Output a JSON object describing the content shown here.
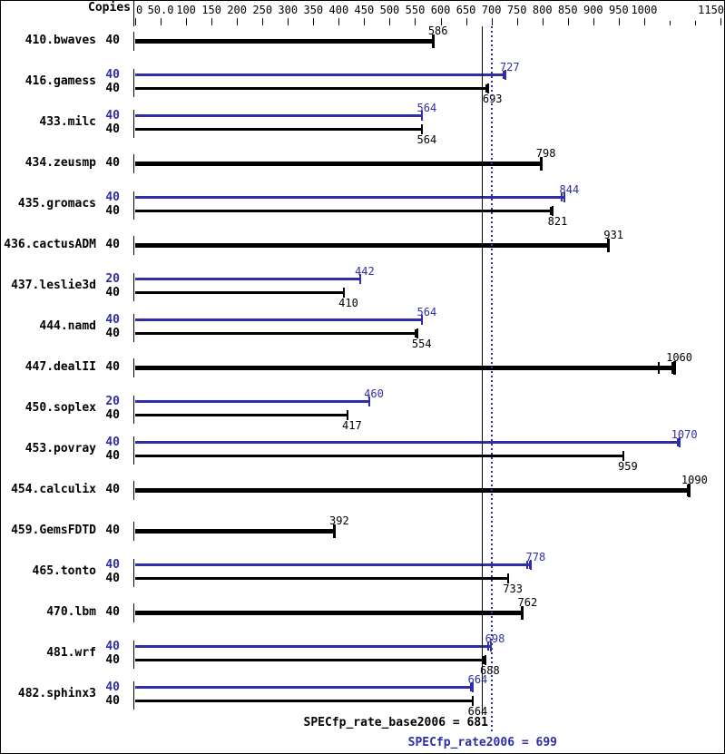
{
  "chart_data": {
    "type": "bar",
    "orientation": "horizontal",
    "copies_label": "Copies",
    "axis": {
      "min": 0,
      "max": 1150,
      "labeled_ticks": [
        {
          "value": 0,
          "label": "0"
        },
        {
          "value": 50,
          "label": "50.0"
        },
        {
          "value": 100,
          "label": "100"
        },
        {
          "value": 150,
          "label": "150"
        },
        {
          "value": 200,
          "label": "200"
        },
        {
          "value": 250,
          "label": "250"
        },
        {
          "value": 300,
          "label": "300"
        },
        {
          "value": 350,
          "label": "350"
        },
        {
          "value": 400,
          "label": "400"
        },
        {
          "value": 450,
          "label": "450"
        },
        {
          "value": 500,
          "label": "500"
        },
        {
          "value": 550,
          "label": "550"
        },
        {
          "value": 600,
          "label": "600"
        },
        {
          "value": 650,
          "label": "650"
        },
        {
          "value": 700,
          "label": "700"
        },
        {
          "value": 750,
          "label": "750"
        },
        {
          "value": 800,
          "label": "800"
        },
        {
          "value": 850,
          "label": "850"
        },
        {
          "value": 900,
          "label": "900"
        },
        {
          "value": 950,
          "label": "950"
        },
        {
          "value": 1000,
          "label": "1000"
        },
        {
          "value": 1150,
          "label": "1150"
        }
      ],
      "minor_ticks": [
        1050,
        1100
      ]
    },
    "series_colors": {
      "base": "#000000",
      "peak": "#2e2ea8"
    },
    "benchmarks": [
      {
        "name": "410.bwaves",
        "bars": [
          {
            "series": "base",
            "copies": "40",
            "value": 586
          }
        ]
      },
      {
        "name": "416.gamess",
        "bars": [
          {
            "series": "peak",
            "copies": "40",
            "value": 727,
            "run_ticks": [
              723
            ]
          },
          {
            "series": "base",
            "copies": "40",
            "value": 693,
            "run_ticks": [
              690
            ]
          }
        ]
      },
      {
        "name": "433.milc",
        "bars": [
          {
            "series": "peak",
            "copies": "40",
            "value": 564
          },
          {
            "series": "base",
            "copies": "40",
            "value": 564
          }
        ]
      },
      {
        "name": "434.zeusmp",
        "bars": [
          {
            "series": "base",
            "copies": "40",
            "value": 798
          }
        ]
      },
      {
        "name": "435.gromacs",
        "bars": [
          {
            "series": "peak",
            "copies": "40",
            "value": 844,
            "run_ticks": [
              838
            ]
          },
          {
            "series": "base",
            "copies": "40",
            "value": 821,
            "run_ticks": [
              817
            ]
          }
        ]
      },
      {
        "name": "436.cactusADM",
        "bars": [
          {
            "series": "base",
            "copies": "40",
            "value": 931
          }
        ]
      },
      {
        "name": "437.leslie3d",
        "bars": [
          {
            "series": "peak",
            "copies": "20",
            "value": 442
          },
          {
            "series": "base",
            "copies": "40",
            "value": 410
          }
        ]
      },
      {
        "name": "444.namd",
        "bars": [
          {
            "series": "peak",
            "copies": "40",
            "value": 564
          },
          {
            "series": "base",
            "copies": "40",
            "value": 554,
            "run_ticks": [
              551
            ]
          }
        ]
      },
      {
        "name": "447.dealII",
        "bars": [
          {
            "series": "base",
            "copies": "40",
            "value": 1060,
            "run_ticks": [
              1028,
              1056
            ]
          }
        ]
      },
      {
        "name": "450.soplex",
        "bars": [
          {
            "series": "peak",
            "copies": "20",
            "value": 460
          },
          {
            "series": "base",
            "copies": "40",
            "value": 417
          }
        ]
      },
      {
        "name": "453.povray",
        "bars": [
          {
            "series": "peak",
            "copies": "40",
            "value": 1070,
            "run_ticks": [
              1066
            ]
          },
          {
            "series": "base",
            "copies": "40",
            "value": 959
          }
        ]
      },
      {
        "name": "454.calculix",
        "bars": [
          {
            "series": "base",
            "copies": "40",
            "value": 1090,
            "run_ticks": [
              1085
            ]
          }
        ]
      },
      {
        "name": "459.GemsFDTD",
        "bars": [
          {
            "series": "base",
            "copies": "40",
            "value": 392
          }
        ]
      },
      {
        "name": "465.tonto",
        "bars": [
          {
            "series": "peak",
            "copies": "40",
            "value": 778,
            "run_ticks": [
              771,
              775
            ]
          },
          {
            "series": "base",
            "copies": "40",
            "value": 733
          }
        ]
      },
      {
        "name": "470.lbm",
        "bars": [
          {
            "series": "base",
            "copies": "40",
            "value": 762
          }
        ]
      },
      {
        "name": "481.wrf",
        "bars": [
          {
            "series": "peak",
            "copies": "40",
            "value": 698,
            "run_ticks": [
              694
            ]
          },
          {
            "series": "base",
            "copies": "40",
            "value": 688,
            "run_ticks": [
              684
            ]
          }
        ]
      },
      {
        "name": "482.sphinx3",
        "bars": [
          {
            "series": "peak",
            "copies": "40",
            "value": 664,
            "run_ticks": [
              660
            ]
          },
          {
            "series": "base",
            "copies": "40",
            "value": 664
          }
        ]
      }
    ],
    "reference_lines": [
      {
        "name": "base-mean",
        "value": 681,
        "style": "solid",
        "series": "base"
      },
      {
        "name": "peak-mean",
        "value": 699,
        "style": "dotted",
        "series": "peak"
      }
    ],
    "summary": {
      "base": {
        "text": "SPECfp_rate_base2006 = 681"
      },
      "peak": {
        "text": "SPECfp_rate2006 = 699"
      }
    }
  }
}
